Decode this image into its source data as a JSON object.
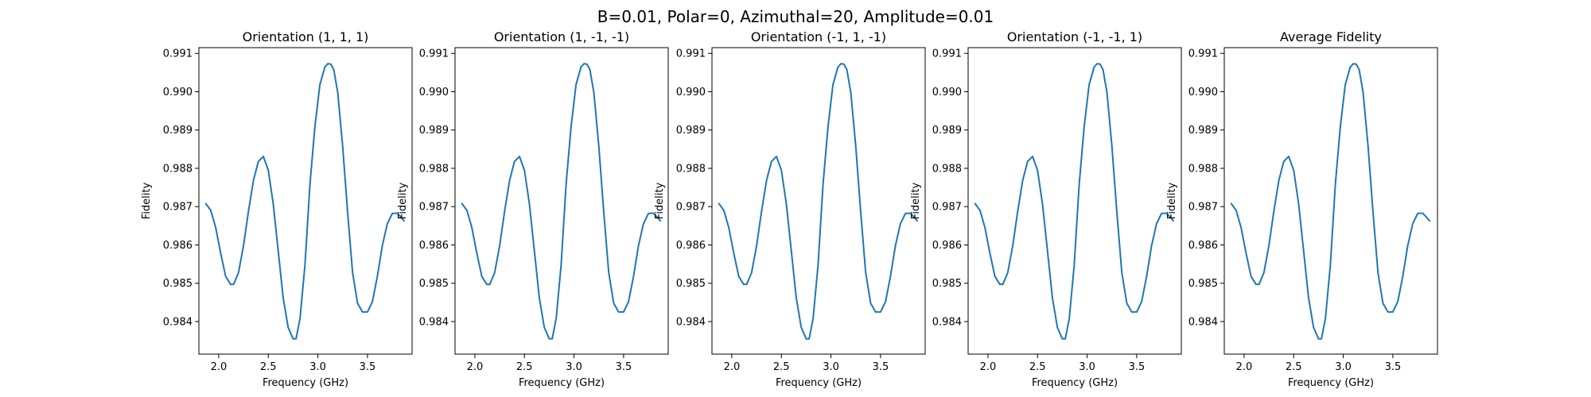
{
  "figure": {
    "suptitle": "B=0.01, Polar=0, Azimuthal=20, Amplitude=0.01"
  },
  "chart_data": [
    {
      "type": "line",
      "title": "Orientation (1, 1, 1)",
      "xlabel": "Frequency (GHz)",
      "ylabel": "Fidelity",
      "xlim": [
        1.8,
        3.95
      ],
      "ylim": [
        0.98315,
        0.99115
      ],
      "xticks": [
        "2.0",
        "2.5",
        "3.0",
        "3.5"
      ],
      "yticks": [
        "0.984",
        "0.985",
        "0.986",
        "0.987",
        "0.988",
        "0.989",
        "0.990",
        "0.991"
      ],
      "grid": false,
      "series": [
        {
          "color": "#1f77b4",
          "x": [
            1.87,
            1.92,
            1.97,
            2.02,
            2.07,
            2.12,
            2.15,
            2.2,
            2.25,
            2.3,
            2.35,
            2.4,
            2.45,
            2.5,
            2.55,
            2.6,
            2.65,
            2.7,
            2.75,
            2.78,
            2.82,
            2.87,
            2.92,
            2.97,
            3.02,
            3.07,
            3.1,
            3.13,
            3.16,
            3.2,
            3.25,
            3.3,
            3.35,
            3.4,
            3.45,
            3.5,
            3.55,
            3.6,
            3.65,
            3.7,
            3.75,
            3.8,
            3.83,
            3.87
          ],
          "y": [
            0.98708,
            0.9869,
            0.98645,
            0.98578,
            0.98518,
            0.98497,
            0.98497,
            0.98528,
            0.98598,
            0.98688,
            0.98768,
            0.98818,
            0.98831,
            0.98795,
            0.98707,
            0.98585,
            0.98462,
            0.98385,
            0.98355,
            0.98355,
            0.98408,
            0.98548,
            0.98758,
            0.98908,
            0.99018,
            0.99064,
            0.99073,
            0.99072,
            0.99058,
            0.98998,
            0.98858,
            0.98685,
            0.98528,
            0.98448,
            0.98425,
            0.98425,
            0.98452,
            0.98518,
            0.98598,
            0.98655,
            0.98682,
            0.98683,
            0.98675,
            0.98663
          ]
        }
      ]
    },
    {
      "type": "line",
      "title": "Orientation (1, -1, -1)",
      "xlabel": "Frequency (GHz)",
      "ylabel": "Fidelity",
      "xlim": [
        1.8,
        3.95
      ],
      "ylim": [
        0.98315,
        0.99115
      ],
      "xticks": [
        "2.0",
        "2.5",
        "3.0",
        "3.5"
      ],
      "yticks": [
        "0.984",
        "0.985",
        "0.986",
        "0.987",
        "0.988",
        "0.989",
        "0.990",
        "0.991"
      ],
      "grid": false,
      "series": [
        {
          "color": "#1f77b4",
          "x": [
            1.87,
            1.92,
            1.97,
            2.02,
            2.07,
            2.12,
            2.15,
            2.2,
            2.25,
            2.3,
            2.35,
            2.4,
            2.45,
            2.5,
            2.55,
            2.6,
            2.65,
            2.7,
            2.75,
            2.78,
            2.82,
            2.87,
            2.92,
            2.97,
            3.02,
            3.07,
            3.1,
            3.13,
            3.16,
            3.2,
            3.25,
            3.3,
            3.35,
            3.4,
            3.45,
            3.5,
            3.55,
            3.6,
            3.65,
            3.7,
            3.75,
            3.8,
            3.83,
            3.87
          ],
          "y": [
            0.98708,
            0.9869,
            0.98645,
            0.98578,
            0.98518,
            0.98497,
            0.98497,
            0.98528,
            0.98598,
            0.98688,
            0.98768,
            0.98818,
            0.98831,
            0.98795,
            0.98707,
            0.98585,
            0.98462,
            0.98385,
            0.98355,
            0.98355,
            0.98408,
            0.98548,
            0.98758,
            0.98908,
            0.99018,
            0.99064,
            0.99073,
            0.99072,
            0.99058,
            0.98998,
            0.98858,
            0.98685,
            0.98528,
            0.98448,
            0.98425,
            0.98425,
            0.98452,
            0.98518,
            0.98598,
            0.98655,
            0.98682,
            0.98683,
            0.98675,
            0.98663
          ]
        }
      ]
    },
    {
      "type": "line",
      "title": "Orientation (-1, 1, -1)",
      "xlabel": "Frequency (GHz)",
      "ylabel": "Fidelity",
      "xlim": [
        1.8,
        3.95
      ],
      "ylim": [
        0.98315,
        0.99115
      ],
      "xticks": [
        "2.0",
        "2.5",
        "3.0",
        "3.5"
      ],
      "yticks": [
        "0.984",
        "0.985",
        "0.986",
        "0.987",
        "0.988",
        "0.989",
        "0.990",
        "0.991"
      ],
      "grid": false,
      "series": [
        {
          "color": "#1f77b4",
          "x": [
            1.87,
            1.92,
            1.97,
            2.02,
            2.07,
            2.12,
            2.15,
            2.2,
            2.25,
            2.3,
            2.35,
            2.4,
            2.45,
            2.5,
            2.55,
            2.6,
            2.65,
            2.7,
            2.75,
            2.78,
            2.82,
            2.87,
            2.92,
            2.97,
            3.02,
            3.07,
            3.1,
            3.13,
            3.16,
            3.2,
            3.25,
            3.3,
            3.35,
            3.4,
            3.45,
            3.5,
            3.55,
            3.6,
            3.65,
            3.7,
            3.75,
            3.8,
            3.83,
            3.87
          ],
          "y": [
            0.98708,
            0.9869,
            0.98645,
            0.98578,
            0.98518,
            0.98497,
            0.98497,
            0.98528,
            0.98598,
            0.98688,
            0.98768,
            0.98818,
            0.98831,
            0.98795,
            0.98707,
            0.98585,
            0.98462,
            0.98385,
            0.98355,
            0.98355,
            0.98408,
            0.98548,
            0.98758,
            0.98908,
            0.99018,
            0.99064,
            0.99073,
            0.99072,
            0.99058,
            0.98998,
            0.98858,
            0.98685,
            0.98528,
            0.98448,
            0.98425,
            0.98425,
            0.98452,
            0.98518,
            0.98598,
            0.98655,
            0.98682,
            0.98683,
            0.98675,
            0.98663
          ]
        }
      ]
    },
    {
      "type": "line",
      "title": "Orientation (-1, -1, 1)",
      "xlabel": "Frequency (GHz)",
      "ylabel": "Fidelity",
      "xlim": [
        1.8,
        3.95
      ],
      "ylim": [
        0.98315,
        0.99115
      ],
      "xticks": [
        "2.0",
        "2.5",
        "3.0",
        "3.5"
      ],
      "yticks": [
        "0.984",
        "0.985",
        "0.986",
        "0.987",
        "0.988",
        "0.989",
        "0.990",
        "0.991"
      ],
      "grid": false,
      "series": [
        {
          "color": "#1f77b4",
          "x": [
            1.87,
            1.92,
            1.97,
            2.02,
            2.07,
            2.12,
            2.15,
            2.2,
            2.25,
            2.3,
            2.35,
            2.4,
            2.45,
            2.5,
            2.55,
            2.6,
            2.65,
            2.7,
            2.75,
            2.78,
            2.82,
            2.87,
            2.92,
            2.97,
            3.02,
            3.07,
            3.1,
            3.13,
            3.16,
            3.2,
            3.25,
            3.3,
            3.35,
            3.4,
            3.45,
            3.5,
            3.55,
            3.6,
            3.65,
            3.7,
            3.75,
            3.8,
            3.83,
            3.87
          ],
          "y": [
            0.98708,
            0.9869,
            0.98645,
            0.98578,
            0.98518,
            0.98497,
            0.98497,
            0.98528,
            0.98598,
            0.98688,
            0.98768,
            0.98818,
            0.98831,
            0.98795,
            0.98707,
            0.98585,
            0.98462,
            0.98385,
            0.98355,
            0.98355,
            0.98408,
            0.98548,
            0.98758,
            0.98908,
            0.99018,
            0.99064,
            0.99073,
            0.99072,
            0.99058,
            0.98998,
            0.98858,
            0.98685,
            0.98528,
            0.98448,
            0.98425,
            0.98425,
            0.98452,
            0.98518,
            0.98598,
            0.98655,
            0.98682,
            0.98683,
            0.98675,
            0.98663
          ]
        }
      ]
    },
    {
      "type": "line",
      "title": "Average Fidelity",
      "xlabel": "Frequency (GHz)",
      "ylabel": "Fidelity",
      "xlim": [
        1.8,
        3.95
      ],
      "ylim": [
        0.98315,
        0.99115
      ],
      "xticks": [
        "2.0",
        "2.5",
        "3.0",
        "3.5"
      ],
      "yticks": [
        "0.984",
        "0.985",
        "0.986",
        "0.987",
        "0.988",
        "0.989",
        "0.990",
        "0.991"
      ],
      "grid": false,
      "series": [
        {
          "color": "#1f77b4",
          "x": [
            1.87,
            1.92,
            1.97,
            2.02,
            2.07,
            2.12,
            2.15,
            2.2,
            2.25,
            2.3,
            2.35,
            2.4,
            2.45,
            2.5,
            2.55,
            2.6,
            2.65,
            2.7,
            2.75,
            2.78,
            2.82,
            2.87,
            2.92,
            2.97,
            3.02,
            3.07,
            3.1,
            3.13,
            3.16,
            3.2,
            3.25,
            3.3,
            3.35,
            3.4,
            3.45,
            3.5,
            3.55,
            3.6,
            3.65,
            3.7,
            3.75,
            3.8,
            3.83,
            3.87
          ],
          "y": [
            0.98708,
            0.9869,
            0.98645,
            0.98578,
            0.98518,
            0.98497,
            0.98497,
            0.98528,
            0.98598,
            0.98688,
            0.98768,
            0.98818,
            0.98831,
            0.98795,
            0.98707,
            0.98585,
            0.98462,
            0.98385,
            0.98355,
            0.98355,
            0.98408,
            0.98548,
            0.98758,
            0.98908,
            0.99018,
            0.99064,
            0.99073,
            0.99072,
            0.99058,
            0.98998,
            0.98858,
            0.98685,
            0.98528,
            0.98448,
            0.98425,
            0.98425,
            0.98452,
            0.98518,
            0.98598,
            0.98655,
            0.98682,
            0.98683,
            0.98675,
            0.98663
          ]
        }
      ]
    }
  ]
}
